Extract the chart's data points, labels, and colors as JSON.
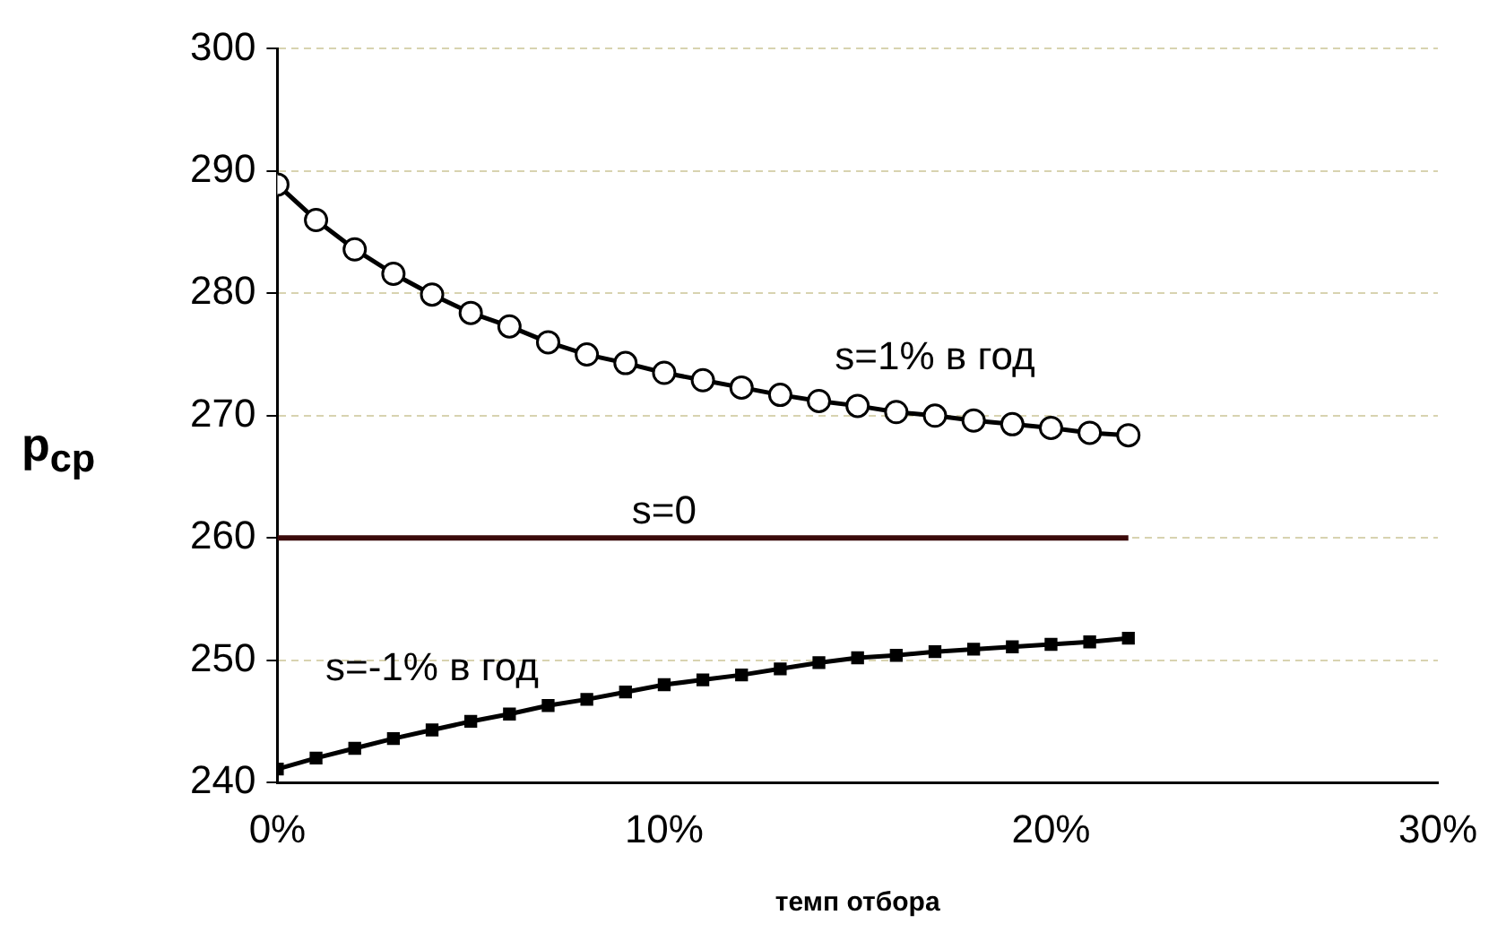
{
  "chart_data": {
    "type": "line",
    "xlabel": "темп отбора",
    "ylabel": "p$_{ср}$",
    "xlim": [
      0,
      30
    ],
    "xticks": [
      {
        "value": 0,
        "label": "0%"
      },
      {
        "value": 10,
        "label": "10%"
      },
      {
        "value": 20,
        "label": "20%"
      },
      {
        "value": 30,
        "label": "30%"
      }
    ],
    "ylim": [
      240,
      300
    ],
    "yticks": [
      240,
      250,
      260,
      270,
      280,
      290,
      300
    ],
    "grid": "y",
    "x": [
      0,
      1,
      2,
      3,
      4,
      5,
      6,
      7,
      8,
      9,
      10,
      11,
      12,
      13,
      14,
      15,
      16,
      17,
      18,
      19,
      20,
      21,
      22
    ],
    "series": [
      {
        "name": "s=1% в год",
        "color": "#000000",
        "marker": "circle",
        "values": [
          288.9,
          286.0,
          283.6,
          281.6,
          279.9,
          278.4,
          277.3,
          276.0,
          275.0,
          274.3,
          273.5,
          272.9,
          272.3,
          271.7,
          271.2,
          270.8,
          270.3,
          270.0,
          269.6,
          269.3,
          269.0,
          268.6,
          268.4
        ]
      },
      {
        "name": "s=0",
        "color": "#3b0a0a",
        "marker": "none",
        "values": [
          260,
          260,
          260,
          260,
          260,
          260,
          260,
          260,
          260,
          260,
          260,
          260,
          260,
          260,
          260,
          260,
          260,
          260,
          260,
          260,
          260,
          260,
          260
        ]
      },
      {
        "name": "s=-1% в год",
        "color": "#000000",
        "marker": "square",
        "values": [
          241.1,
          242.0,
          242.8,
          243.6,
          244.3,
          245.0,
          245.6,
          246.3,
          246.8,
          247.4,
          248.0,
          248.4,
          248.8,
          249.3,
          249.8,
          250.2,
          250.4,
          250.7,
          250.9,
          251.1,
          251.3,
          251.5,
          251.8
        ]
      }
    ]
  }
}
